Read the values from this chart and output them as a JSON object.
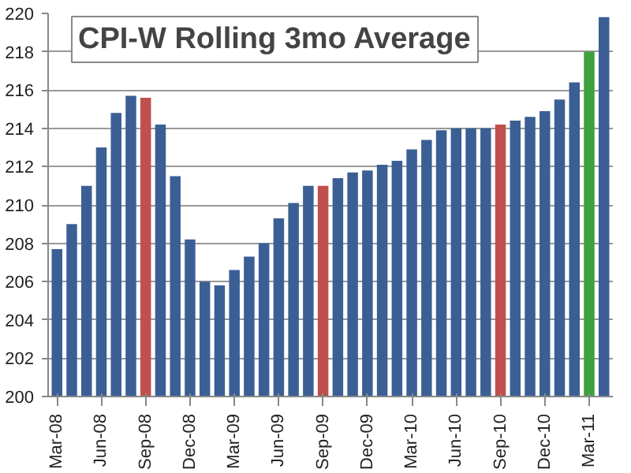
{
  "chart_data": {
    "type": "bar",
    "title": "CPI-W Rolling 3mo Average",
    "categories": [
      "Mar-08",
      null,
      null,
      "Jun-08",
      null,
      null,
      "Sep-08",
      null,
      null,
      "Dec-08",
      null,
      null,
      "Mar-09",
      null,
      null,
      "Jun-09",
      null,
      null,
      "Sep-09",
      null,
      null,
      "Dec-09",
      null,
      null,
      "Mar-10",
      null,
      null,
      "Jun-10",
      null,
      null,
      "Sep-10",
      null,
      null,
      "Dec-10",
      null,
      null,
      "Mar-11",
      null
    ],
    "values": [
      207.7,
      209.0,
      211.0,
      213.0,
      214.8,
      215.7,
      215.6,
      214.2,
      211.5,
      208.2,
      206.0,
      205.8,
      206.6,
      207.3,
      208.0,
      209.3,
      210.1,
      211.0,
      211.0,
      211.4,
      211.7,
      211.8,
      212.1,
      212.3,
      212.9,
      213.4,
      213.9,
      214.0,
      214.0,
      214.0,
      214.2,
      214.4,
      214.6,
      214.9,
      215.5,
      216.4,
      218.0,
      219.8
    ],
    "colors": [
      "#3b5f95",
      "#3b5f95",
      "#3b5f95",
      "#3b5f95",
      "#3b5f95",
      "#3b5f95",
      "#c0504d",
      "#3b5f95",
      "#3b5f95",
      "#3b5f95",
      "#3b5f95",
      "#3b5f95",
      "#3b5f95",
      "#3b5f95",
      "#3b5f95",
      "#3b5f95",
      "#3b5f95",
      "#3b5f95",
      "#c0504d",
      "#3b5f95",
      "#3b5f95",
      "#3b5f95",
      "#3b5f95",
      "#3b5f95",
      "#3b5f95",
      "#3b5f95",
      "#3b5f95",
      "#3b5f95",
      "#3b5f95",
      "#3b5f95",
      "#c0504d",
      "#3b5f95",
      "#3b5f95",
      "#3b5f95",
      "#3b5f95",
      "#3b5f95",
      "#3ea03e",
      "#3b5f95"
    ],
    "ylim": [
      200,
      220
    ],
    "yticks": [
      200,
      202,
      204,
      206,
      208,
      210,
      212,
      214,
      216,
      218,
      220
    ],
    "grid": "y"
  }
}
